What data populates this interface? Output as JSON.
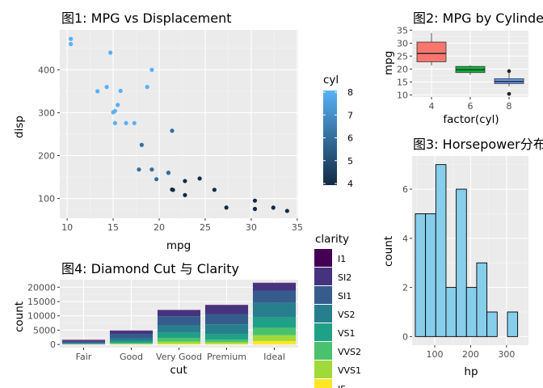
{
  "chart_data": [
    {
      "id": "p1",
      "type": "scatter",
      "title": "图1: MPG vs Displacement",
      "xlabel": "mpg",
      "ylabel": "disp",
      "xlim": [
        9.2,
        35.1
      ],
      "ylim": [
        54,
        493
      ],
      "xticks": [
        10,
        15,
        20,
        25,
        30,
        35
      ],
      "yticks": [
        100,
        200,
        300,
        400
      ],
      "grid": true,
      "legend": {
        "title": "cyl",
        "type": "colorbar",
        "range": [
          4,
          8
        ],
        "ticks": [
          4,
          5,
          6,
          7,
          8
        ],
        "low_color": "#132B43",
        "high_color": "#56B1F7"
      },
      "points": [
        {
          "x": 21.0,
          "y": 160,
          "c": 6
        },
        {
          "x": 21.0,
          "y": 160,
          "c": 6
        },
        {
          "x": 22.8,
          "y": 108,
          "c": 4
        },
        {
          "x": 21.4,
          "y": 258,
          "c": 6
        },
        {
          "x": 18.7,
          "y": 360,
          "c": 8
        },
        {
          "x": 18.1,
          "y": 225,
          "c": 6
        },
        {
          "x": 14.3,
          "y": 360,
          "c": 8
        },
        {
          "x": 24.4,
          "y": 146.7,
          "c": 4
        },
        {
          "x": 22.8,
          "y": 140.8,
          "c": 4
        },
        {
          "x": 19.2,
          "y": 167.6,
          "c": 6
        },
        {
          "x": 17.8,
          "y": 167.6,
          "c": 6
        },
        {
          "x": 16.4,
          "y": 275.8,
          "c": 8
        },
        {
          "x": 17.3,
          "y": 275.8,
          "c": 8
        },
        {
          "x": 15.2,
          "y": 275.8,
          "c": 8
        },
        {
          "x": 10.4,
          "y": 472,
          "c": 8
        },
        {
          "x": 10.4,
          "y": 460,
          "c": 8
        },
        {
          "x": 14.7,
          "y": 440,
          "c": 8
        },
        {
          "x": 32.4,
          "y": 78.7,
          "c": 4
        },
        {
          "x": 30.4,
          "y": 75.7,
          "c": 4
        },
        {
          "x": 33.9,
          "y": 71.1,
          "c": 4
        },
        {
          "x": 21.5,
          "y": 120.1,
          "c": 4
        },
        {
          "x": 15.5,
          "y": 318,
          "c": 8
        },
        {
          "x": 15.2,
          "y": 304,
          "c": 8
        },
        {
          "x": 13.3,
          "y": 350,
          "c": 8
        },
        {
          "x": 19.2,
          "y": 400,
          "c": 8
        },
        {
          "x": 27.3,
          "y": 79,
          "c": 4
        },
        {
          "x": 26.0,
          "y": 120.3,
          "c": 4
        },
        {
          "x": 30.4,
          "y": 95.1,
          "c": 4
        },
        {
          "x": 15.8,
          "y": 351,
          "c": 8
        },
        {
          "x": 19.7,
          "y": 145,
          "c": 6
        },
        {
          "x": 15.0,
          "y": 301,
          "c": 8
        },
        {
          "x": 21.4,
          "y": 121,
          "c": 4
        }
      ]
    },
    {
      "id": "p2",
      "type": "box",
      "title": "图2: MPG by Cylinders",
      "xlabel": "factor(cyl)",
      "ylabel": "mpg",
      "categories": [
        "4",
        "6",
        "8"
      ],
      "ylim": [
        9.2,
        35.1
      ],
      "yticks": [
        10,
        15,
        20,
        25,
        30,
        35
      ],
      "grid": true,
      "boxes": [
        {
          "cat": "4",
          "min": 21.4,
          "q1": 22.8,
          "median": 26.0,
          "q3": 30.4,
          "max": 33.9,
          "outliers": [],
          "color": "#F8766D"
        },
        {
          "cat": "6",
          "min": 17.8,
          "q1": 18.65,
          "median": 19.7,
          "q3": 21.0,
          "max": 21.4,
          "outliers": [],
          "color": "#00BA38"
        },
        {
          "cat": "8",
          "min": 13.3,
          "q1": 14.4,
          "median": 15.2,
          "q3": 16.25,
          "max": 18.7,
          "outliers": [
            10.4,
            10.4,
            19.2
          ],
          "color": "#619CFF"
        }
      ]
    },
    {
      "id": "p3",
      "type": "bar",
      "title": "图3: Horsepower分布",
      "xlabel": "hp",
      "ylabel": "count",
      "xlim": [
        37,
        361
      ],
      "ylim": [
        -0.35,
        7.35
      ],
      "xticks": [
        100,
        200,
        300
      ],
      "yticks": [
        0,
        2,
        4,
        6
      ],
      "grid": true,
      "fill": "#87CEEB",
      "bins": [
        {
          "from": 45.9,
          "to": 74.4,
          "count": 5
        },
        {
          "from": 74.4,
          "to": 102.9,
          "count": 5
        },
        {
          "from": 102.9,
          "to": 131.4,
          "count": 7
        },
        {
          "from": 131.4,
          "to": 159.9,
          "count": 2
        },
        {
          "from": 159.9,
          "to": 188.4,
          "count": 6
        },
        {
          "from": 188.4,
          "to": 216.9,
          "count": 2
        },
        {
          "from": 216.9,
          "to": 245.4,
          "count": 3
        },
        {
          "from": 245.4,
          "to": 273.9,
          "count": 1
        },
        {
          "from": 273.9,
          "to": 302.4,
          "count": 0
        },
        {
          "from": 302.4,
          "to": 330.9,
          "count": 1
        },
        {
          "from": 330.9,
          "to": 359.4,
          "count": 0
        }
      ]
    },
    {
      "id": "p4",
      "type": "bar",
      "stacked": true,
      "title": "图4: Diamond Cut 与 Clarity",
      "xlabel": "cut",
      "ylabel": "count",
      "categories": [
        "Fair",
        "Good",
        "Very Good",
        "Premium",
        "Ideal"
      ],
      "ylim": [
        -1075,
        22626
      ],
      "yticks": [
        0,
        5000,
        10000,
        15000,
        20000
      ],
      "yticklabels": [
        "0",
        "5000",
        "10000",
        "15000",
        "20000"
      ],
      "grid": true,
      "legend": {
        "title": "clarity",
        "entries": [
          "I1",
          "SI2",
          "SI1",
          "VS2",
          "VS1",
          "VVS2",
          "VVS1",
          "IF"
        ],
        "colors": [
          "#440154",
          "#46337E",
          "#365C8D",
          "#277F8E",
          "#1FA187",
          "#4AC16D",
          "#9FDA3A",
          "#FDE725"
        ]
      },
      "series": [
        {
          "name": "I1",
          "values": [
            210,
            96,
            84,
            205,
            146
          ]
        },
        {
          "name": "SI2",
          "values": [
            466,
            1081,
            2100,
            2949,
            2598
          ]
        },
        {
          "name": "SI1",
          "values": [
            408,
            1560,
            3240,
            3575,
            4282
          ]
        },
        {
          "name": "VS2",
          "values": [
            261,
            978,
            2591,
            3357,
            5071
          ]
        },
        {
          "name": "VS1",
          "values": [
            170,
            648,
            1775,
            1989,
            3589
          ]
        },
        {
          "name": "VVS2",
          "values": [
            69,
            286,
            1235,
            870,
            2606
          ]
        },
        {
          "name": "VVS1",
          "values": [
            17,
            186,
            789,
            616,
            2047
          ]
        },
        {
          "name": "IF",
          "values": [
            9,
            71,
            268,
            230,
            1212
          ]
        }
      ]
    }
  ]
}
